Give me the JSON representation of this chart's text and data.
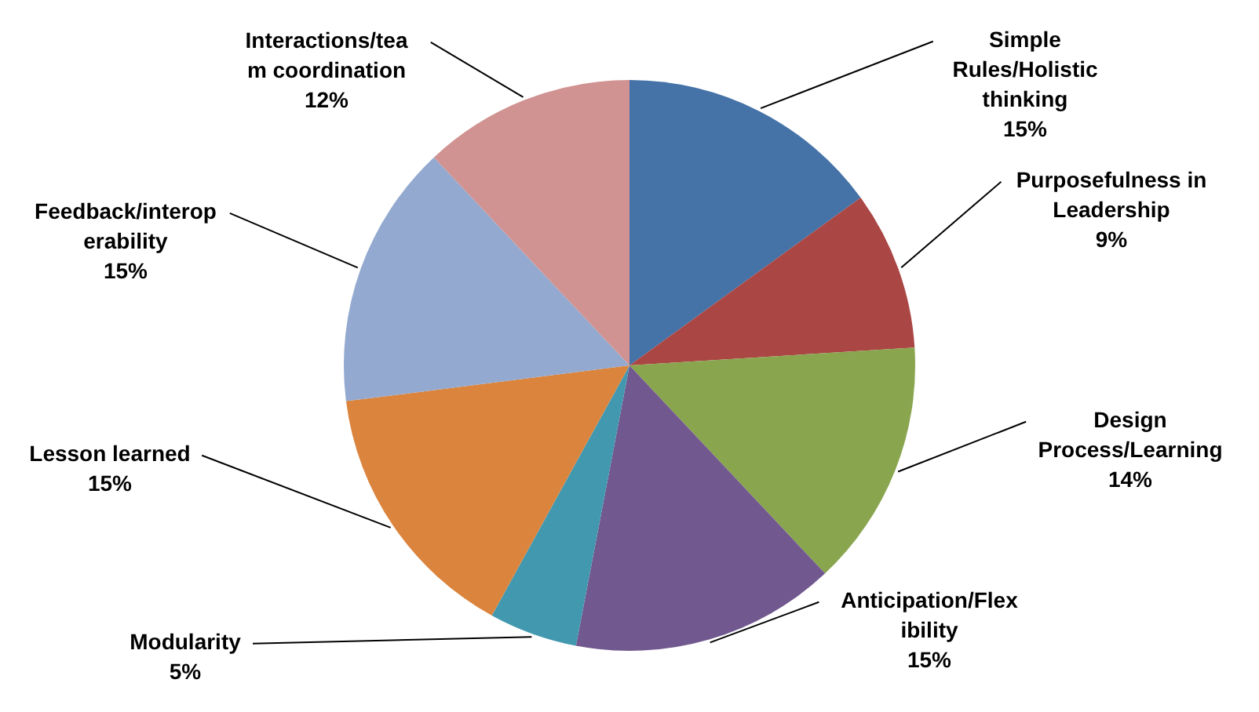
{
  "chart_data": {
    "type": "pie",
    "categories": [
      "Simple Rules/Holistic thinking",
      "Purposefulness in Leadership",
      "Design Process/Learning",
      "Anticipation/Flexibility",
      "Modularity",
      "Lesson learned",
      "Feedback/interoperability",
      "Interactions/team coordination"
    ],
    "values": [
      15,
      9,
      14,
      15,
      5,
      15,
      15,
      12
    ],
    "value_labels": [
      "15%",
      "9%",
      "14%",
      "15%",
      "5%",
      "15%",
      "15%",
      "12%"
    ],
    "colors": [
      "#4572a7",
      "#aa4643",
      "#89a54e",
      "#71588f",
      "#4198af",
      "#db843d",
      "#93a9cf",
      "#d19392"
    ],
    "legend": false
  }
}
